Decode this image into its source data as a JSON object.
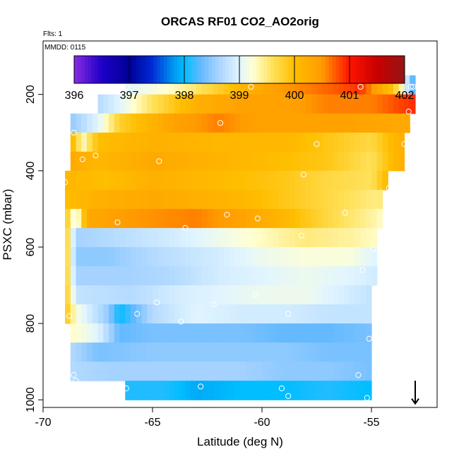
{
  "chart_data": {
    "type": "heatmap",
    "title": "ORCAS RF01 CO2_AO2orig",
    "flights_label": "Flts: 1",
    "date_label": "MMDD: 0115",
    "xlabel": "Latitude (deg N)",
    "ylabel": "PSXC (mbar)",
    "xlim": [
      -70,
      -52
    ],
    "ylim": [
      1020,
      60
    ],
    "x_ticks": [
      -70,
      -65,
      -60,
      -55
    ],
    "y_ticks": [
      200,
      400,
      600,
      800,
      1000
    ],
    "colorbar": {
      "min": 396,
      "max": 402,
      "ticks": [
        396,
        397,
        398,
        399,
        400,
        401,
        402
      ]
    },
    "cell_width_deg": 0.25,
    "cell_height_mbar": 50,
    "rows": [
      {
        "pressure": 175,
        "x_start": -66.25,
        "x_end": -53.0,
        "anchors": [
          [
            -66.25,
            399.0
          ],
          [
            -64,
            399.3
          ],
          [
            -62,
            399.8
          ],
          [
            -61,
            400.1
          ],
          [
            -59,
            400.5
          ],
          [
            -57,
            400.7
          ],
          [
            -55.5,
            400.9
          ],
          [
            -54,
            399.9
          ],
          [
            -53.5,
            399.2
          ],
          [
            -53.2,
            398.3
          ]
        ]
      },
      {
        "pressure": 225,
        "x_start": -67.5,
        "x_end": -53.0,
        "anchors": [
          [
            -67.5,
            398.7
          ],
          [
            -66.5,
            399.0
          ],
          [
            -65,
            399.6
          ],
          [
            -63,
            400.2
          ],
          [
            -61,
            400.4
          ],
          [
            -59,
            400.4
          ],
          [
            -57,
            400.6
          ],
          [
            -55,
            400.6
          ],
          [
            -53.2,
            400.9
          ]
        ]
      },
      {
        "pressure": 275,
        "x_start": -68.75,
        "x_end": -53.25,
        "anchors": [
          [
            -68.75,
            398.5
          ],
          [
            -67.5,
            399.0
          ],
          [
            -66.5,
            399.8
          ],
          [
            -64,
            400.4
          ],
          [
            -62,
            400.6
          ],
          [
            -60,
            400.4
          ],
          [
            -58,
            400.4
          ],
          [
            -56,
            400.4
          ],
          [
            -53.5,
            400.3
          ]
        ]
      },
      {
        "pressure": 325,
        "x_start": -68.75,
        "x_end": -53.5,
        "anchors": [
          [
            -68.75,
            400.2
          ],
          [
            -68.2,
            399.3
          ],
          [
            -67.5,
            400.0
          ],
          [
            -65,
            400.2
          ],
          [
            -62,
            400.1
          ],
          [
            -59,
            400.1
          ],
          [
            -57,
            399.9
          ],
          [
            -55,
            399.7
          ],
          [
            -53.7,
            400.2
          ]
        ]
      },
      {
        "pressure": 375,
        "x_start": -68.75,
        "x_end": -53.5,
        "anchors": [
          [
            -68.75,
            400.3
          ],
          [
            -67.5,
            400.1
          ],
          [
            -65,
            400.3
          ],
          [
            -63,
            400.2
          ],
          [
            -61,
            400.1
          ],
          [
            -59,
            400.0
          ],
          [
            -57,
            399.9
          ],
          [
            -55,
            399.6
          ],
          [
            -53.7,
            400.2
          ]
        ]
      },
      {
        "pressure": 425,
        "x_start": -69.0,
        "x_end": -54.25,
        "anchors": [
          [
            -69,
            400.1
          ],
          [
            -67,
            400.0
          ],
          [
            -65,
            400.2
          ],
          [
            -63,
            400.1
          ],
          [
            -61,
            400.0
          ],
          [
            -59,
            399.9
          ],
          [
            -57,
            399.7
          ],
          [
            -55,
            399.6
          ],
          [
            -54.4,
            400.0
          ]
        ]
      },
      {
        "pressure": 475,
        "x_start": -69.0,
        "x_end": -54.5,
        "anchors": [
          [
            -69,
            400.0
          ],
          [
            -67.5,
            400.2
          ],
          [
            -65,
            400.3
          ],
          [
            -63,
            400.2
          ],
          [
            -61,
            400.1
          ],
          [
            -59,
            399.9
          ],
          [
            -57,
            399.7
          ],
          [
            -55,
            399.5
          ],
          [
            -54.6,
            399.5
          ]
        ]
      },
      {
        "pressure": 525,
        "x_start": -69.0,
        "x_end": -54.5,
        "anchors": [
          [
            -69,
            400.0
          ],
          [
            -68.5,
            399.0
          ],
          [
            -68,
            400.3
          ],
          [
            -66,
            400.5
          ],
          [
            -63,
            400.6
          ],
          [
            -61,
            400.4
          ],
          [
            -59,
            400.1
          ],
          [
            -57,
            399.7
          ],
          [
            -55,
            399.4
          ],
          [
            -54.6,
            399.3
          ]
        ]
      },
      {
        "pressure": 575,
        "x_start": -69.0,
        "x_end": -54.75,
        "anchors": [
          [
            -69,
            400.0
          ],
          [
            -68.5,
            398.6
          ],
          [
            -67,
            398.7
          ],
          [
            -64,
            398.9
          ],
          [
            -62,
            399.1
          ],
          [
            -60,
            399.3
          ],
          [
            -58,
            399.5
          ],
          [
            -56,
            399.4
          ],
          [
            -54.9,
            399.3
          ]
        ]
      },
      {
        "pressure": 625,
        "x_start": -69.0,
        "x_end": -54.75,
        "anchors": [
          [
            -69,
            400.0
          ],
          [
            -68.5,
            398.5
          ],
          [
            -67,
            398.5
          ],
          [
            -65,
            398.7
          ],
          [
            -62,
            398.9
          ],
          [
            -60,
            399.1
          ],
          [
            -58,
            399.2
          ],
          [
            -56,
            399.2
          ],
          [
            -54.9,
            399.0
          ]
        ]
      },
      {
        "pressure": 675,
        "x_start": -69.0,
        "x_end": -54.75,
        "anchors": [
          [
            -69,
            400.0
          ],
          [
            -68.5,
            398.6
          ],
          [
            -66,
            398.6
          ],
          [
            -64,
            398.7
          ],
          [
            -62,
            398.9
          ],
          [
            -60,
            399.0
          ],
          [
            -58,
            399.1
          ],
          [
            -56,
            399.0
          ],
          [
            -54.9,
            398.9
          ]
        ]
      },
      {
        "pressure": 725,
        "x_start": -69.0,
        "x_end": -55.0,
        "anchors": [
          [
            -69,
            400.0
          ],
          [
            -68.5,
            398.8
          ],
          [
            -66,
            398.7
          ],
          [
            -64,
            398.9
          ],
          [
            -62,
            399.0
          ],
          [
            -60,
            399.1
          ],
          [
            -58,
            399.1
          ],
          [
            -56,
            398.9
          ],
          [
            -55.1,
            398.8
          ]
        ]
      },
      {
        "pressure": 775,
        "x_start": -69.0,
        "x_end": -55.0,
        "anchors": [
          [
            -69,
            400.0
          ],
          [
            -68.5,
            399.2
          ],
          [
            -67,
            398.5
          ],
          [
            -66.5,
            398.0
          ],
          [
            -65,
            398.7
          ],
          [
            -63,
            399.0
          ],
          [
            -61,
            398.9
          ],
          [
            -59,
            398.9
          ],
          [
            -57,
            398.8
          ],
          [
            -55.1,
            398.8
          ]
        ]
      },
      {
        "pressure": 825,
        "x_start": -68.75,
        "x_end": -55.0,
        "anchors": [
          [
            -68.75,
            399.3
          ],
          [
            -67.5,
            399.0
          ],
          [
            -66.5,
            398.3
          ],
          [
            -65,
            398.4
          ],
          [
            -63,
            398.4
          ],
          [
            -61,
            398.4
          ],
          [
            -59,
            398.3
          ],
          [
            -57,
            398.3
          ],
          [
            -55.1,
            398.4
          ]
        ]
      },
      {
        "pressure": 875,
        "x_start": -68.75,
        "x_end": -55.0,
        "anchors": [
          [
            -68.75,
            398.7
          ],
          [
            -67.5,
            398.4
          ],
          [
            -65,
            398.5
          ],
          [
            -63,
            398.5
          ],
          [
            -61,
            398.5
          ],
          [
            -59,
            398.5
          ],
          [
            -57,
            398.4
          ],
          [
            -55.1,
            398.4
          ]
        ]
      },
      {
        "pressure": 925,
        "x_start": -68.75,
        "x_end": -55.0,
        "anchors": [
          [
            -68.75,
            398.7
          ],
          [
            -67,
            398.6
          ],
          [
            -65,
            398.6
          ],
          [
            -63,
            398.6
          ],
          [
            -61,
            398.6
          ],
          [
            -59,
            398.5
          ],
          [
            -57,
            398.5
          ],
          [
            -55.1,
            398.4
          ]
        ]
      },
      {
        "pressure": 975,
        "x_start": -66.25,
        "x_end": -55.0,
        "anchors": [
          [
            -66.25,
            398.1
          ],
          [
            -64.5,
            398.1
          ],
          [
            -63,
            397.9
          ],
          [
            -61,
            398.0
          ],
          [
            -59,
            398.0
          ],
          [
            -57,
            398.1
          ],
          [
            -55.1,
            398.0
          ]
        ]
      }
    ],
    "flight_markers": [
      [
        -66.2,
        180
      ],
      [
        -60.5,
        180
      ],
      [
        -55.5,
        180
      ],
      [
        -53.2,
        180
      ],
      [
        -53.1,
        180
      ],
      [
        -53.3,
        245
      ],
      [
        -61.9,
        275
      ],
      [
        -68.6,
        300
      ],
      [
        -57.5,
        330
      ],
      [
        -53.5,
        330
      ],
      [
        -68.2,
        370
      ],
      [
        -67.6,
        360
      ],
      [
        -64.7,
        375
      ],
      [
        -58.1,
        410
      ],
      [
        -54.2,
        445
      ],
      [
        -69.0,
        430
      ],
      [
        -56.2,
        510
      ],
      [
        -61.6,
        515
      ],
      [
        -68.5,
        540
      ],
      [
        -66.6,
        535
      ],
      [
        -63.5,
        550
      ],
      [
        -60.2,
        525
      ],
      [
        -58.2,
        570
      ],
      [
        -54.9,
        605
      ],
      [
        -55.4,
        660
      ],
      [
        -60.3,
        725
      ],
      [
        -62.2,
        750
      ],
      [
        -64.8,
        745
      ],
      [
        -65.7,
        775
      ],
      [
        -58.8,
        775
      ],
      [
        -68.8,
        780
      ],
      [
        -63.7,
        795
      ],
      [
        -55.1,
        840
      ],
      [
        -68.6,
        935
      ],
      [
        -68.5,
        950
      ],
      [
        -55.6,
        935
      ],
      [
        -66.2,
        970
      ],
      [
        -62.8,
        965
      ],
      [
        -59.1,
        970
      ],
      [
        -58.8,
        990
      ],
      [
        -55.2,
        995
      ]
    ],
    "arrow_marker": {
      "lat": -53.0,
      "from_pressure": 950,
      "to_pressure": 1010
    }
  }
}
